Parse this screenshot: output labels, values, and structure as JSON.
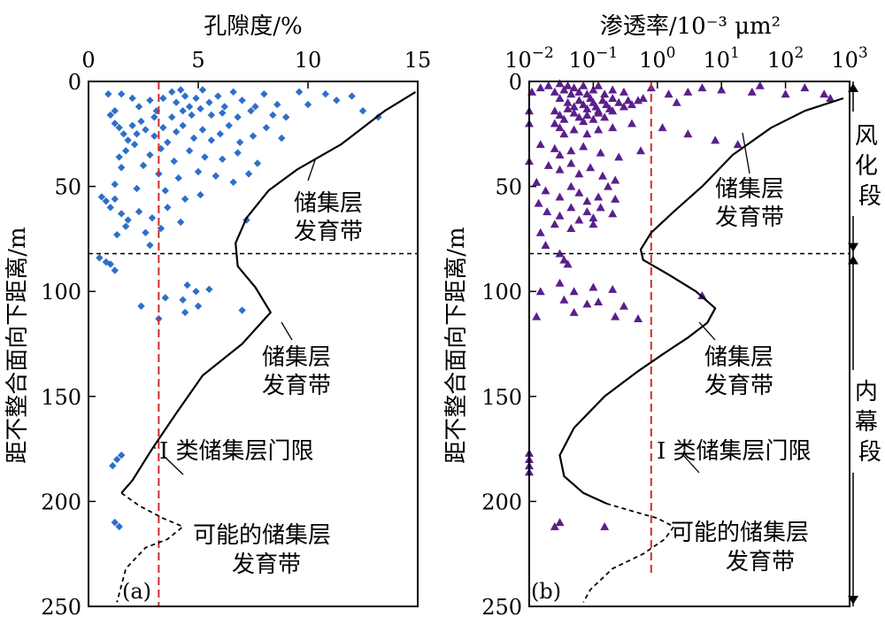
{
  "chart_data": [
    {
      "type": "scatter",
      "panel_label": "(a)",
      "xlabel": "孔隙度/%",
      "ylabel": "距不整合面向下距离/m",
      "xlim": [
        0,
        15
      ],
      "ylim": [
        250,
        0
      ],
      "x_ticks": [
        "0",
        "5",
        "10",
        "15"
      ],
      "y_ticks": [
        "0",
        "50",
        "100",
        "150",
        "200",
        "250"
      ],
      "marker": "diamond",
      "marker_color": "#2e6fc9",
      "threshold": {
        "x": 3.2,
        "color": "#d42a2a",
        "label": "I 类储集层门限"
      },
      "boundary_depth": 82,
      "annotations": [
        "储集层\n发育带",
        "储集层\n发育带",
        "可能的储集层\n发育带"
      ],
      "curve_solid": [
        [
          14.9,
          5
        ],
        [
          13.5,
          14
        ],
        [
          11.5,
          30
        ],
        [
          9.5,
          42
        ],
        [
          8.2,
          52
        ],
        [
          7.2,
          65
        ],
        [
          6.7,
          77
        ],
        [
          6.8,
          88
        ],
        [
          7.6,
          98
        ],
        [
          8.3,
          110
        ],
        [
          7.0,
          125
        ],
        [
          5.2,
          140
        ],
        [
          4.0,
          158
        ],
        [
          2.9,
          175
        ],
        [
          2.0,
          190
        ],
        [
          1.5,
          196
        ]
      ],
      "curve_dashed": [
        [
          1.5,
          196
        ],
        [
          2.3,
          202
        ],
        [
          3.4,
          208
        ],
        [
          4.3,
          212
        ],
        [
          3.6,
          218
        ],
        [
          2.6,
          222
        ],
        [
          1.7,
          232
        ],
        [
          1.3,
          248
        ]
      ],
      "points": [
        [
          0.9,
          6
        ],
        [
          1.2,
          14
        ],
        [
          1.5,
          6
        ],
        [
          2.0,
          8
        ],
        [
          2.3,
          12
        ],
        [
          2.8,
          9
        ],
        [
          3.1,
          14
        ],
        [
          3.4,
          8
        ],
        [
          3.8,
          5
        ],
        [
          4.0,
          10
        ],
        [
          4.2,
          4
        ],
        [
          4.4,
          7
        ],
        [
          4.6,
          12
        ],
        [
          4.9,
          8
        ],
        [
          5.2,
          4
        ],
        [
          5.5,
          10
        ],
        [
          5.9,
          7
        ],
        [
          6.2,
          12
        ],
        [
          6.6,
          5
        ],
        [
          7.0,
          9
        ],
        [
          7.4,
          14
        ],
        [
          8.0,
          6
        ],
        [
          8.6,
          11
        ],
        [
          9.0,
          17
        ],
        [
          9.6,
          5
        ],
        [
          10.0,
          11
        ],
        [
          10.8,
          6
        ],
        [
          11.3,
          9
        ],
        [
          12.0,
          7
        ],
        [
          12.5,
          14
        ],
        [
          13.2,
          17
        ],
        [
          4.3,
          14
        ],
        [
          4.7,
          16
        ],
        [
          5.1,
          13
        ],
        [
          5.6,
          16
        ],
        [
          6.1,
          15
        ],
        [
          6.8,
          17
        ],
        [
          7.6,
          12
        ],
        [
          8.4,
          16
        ],
        [
          3.8,
          17
        ],
        [
          3.0,
          17
        ],
        [
          1.0,
          16
        ],
        [
          1.2,
          20
        ],
        [
          1.4,
          22
        ],
        [
          1.6,
          25
        ],
        [
          1.8,
          28
        ],
        [
          2.0,
          21
        ],
        [
          2.2,
          25
        ],
        [
          2.4,
          19
        ],
        [
          2.6,
          23
        ],
        [
          3.0,
          26
        ],
        [
          3.4,
          22
        ],
        [
          3.6,
          29
        ],
        [
          4.0,
          24
        ],
        [
          4.3,
          21
        ],
        [
          4.8,
          27
        ],
        [
          5.2,
          23
        ],
        [
          5.6,
          28
        ],
        [
          6.0,
          25
        ],
        [
          6.4,
          21
        ],
        [
          6.9,
          29
        ],
        [
          7.5,
          26
        ],
        [
          8.1,
          22
        ],
        [
          8.8,
          27
        ],
        [
          2.1,
          30
        ],
        [
          1.7,
          33
        ],
        [
          1.4,
          36
        ],
        [
          2.8,
          35
        ],
        [
          3.3,
          32
        ],
        [
          3.9,
          38
        ],
        [
          4.6,
          33
        ],
        [
          5.3,
          36
        ],
        [
          6.1,
          37
        ],
        [
          6.8,
          34
        ],
        [
          7.7,
          39
        ],
        [
          1.5,
          41
        ],
        [
          2.5,
          40
        ],
        [
          3.2,
          44
        ],
        [
          4.1,
          46
        ],
        [
          5.0,
          43
        ],
        [
          5.8,
          45
        ],
        [
          6.6,
          48
        ],
        [
          7.3,
          44
        ],
        [
          1.2,
          49
        ],
        [
          2.2,
          51
        ],
        [
          3.5,
          52
        ],
        [
          4.4,
          56
        ],
        [
          5.1,
          54
        ],
        [
          0.6,
          55
        ],
        [
          0.8,
          57
        ],
        [
          1.0,
          60
        ],
        [
          1.2,
          56
        ],
        [
          1.5,
          63
        ],
        [
          1.8,
          66
        ],
        [
          2.3,
          62
        ],
        [
          2.9,
          65
        ],
        [
          3.6,
          60
        ],
        [
          4.2,
          67
        ],
        [
          3.3,
          70
        ],
        [
          2.6,
          72
        ],
        [
          1.7,
          69
        ],
        [
          1.3,
          73
        ],
        [
          7.2,
          66
        ],
        [
          2.8,
          78
        ],
        [
          0.5,
          84
        ],
        [
          0.8,
          86
        ],
        [
          1.0,
          87
        ],
        [
          1.2,
          90
        ],
        [
          4.5,
          97
        ],
        [
          4.9,
          100
        ],
        [
          5.5,
          99
        ],
        [
          3.5,
          103
        ],
        [
          4.3,
          104
        ],
        [
          5.0,
          107
        ],
        [
          4.4,
          110
        ],
        [
          7.0,
          109
        ],
        [
          2.4,
          107
        ],
        [
          3.2,
          113
        ],
        [
          1.5,
          178
        ],
        [
          1.3,
          180
        ],
        [
          1.1,
          183
        ],
        [
          1.2,
          210
        ],
        [
          1.4,
          212
        ]
      ]
    },
    {
      "type": "scatter",
      "panel_label": "(b)",
      "xlabel": "渗透率/10⁻³ μm²",
      "ylabel": "距不整合面向下距离/m",
      "x_scale": "log",
      "xlim": [
        0.01,
        1000
      ],
      "ylim": [
        250,
        0
      ],
      "x_ticks": [
        {
          "base": "10",
          "exp": "−2"
        },
        {
          "base": "10",
          "exp": "−1"
        },
        {
          "base": "10",
          "exp": "0"
        },
        {
          "base": "10",
          "exp": "1"
        },
        {
          "base": "10",
          "exp": "2"
        },
        {
          "base": "10",
          "exp": "3"
        }
      ],
      "y_ticks": [
        "0",
        "50",
        "100",
        "150",
        "200",
        "250"
      ],
      "marker": "triangle",
      "marker_color": "#5a1f8c",
      "threshold": {
        "x": 0.8,
        "color": "#d42a2a",
        "label": "I 类储集层门限"
      },
      "boundary_depth": 82,
      "annotations": [
        "储集层\n发育带",
        "储集层\n发育带",
        "可能的储集层\n发育带"
      ],
      "range_labels": [
        "风化段",
        "内幕段"
      ],
      "curve_solid": [
        [
          800,
          8
        ],
        [
          200,
          14
        ],
        [
          60,
          22
        ],
        [
          15,
          35
        ],
        [
          5,
          50
        ],
        [
          1.8,
          62
        ],
        [
          0.8,
          72
        ],
        [
          0.55,
          80
        ],
        [
          0.6,
          85
        ],
        [
          1.5,
          92
        ],
        [
          4,
          100
        ],
        [
          8,
          108
        ],
        [
          6,
          115
        ],
        [
          3,
          122
        ],
        [
          1.2,
          130
        ],
        [
          0.5,
          138
        ],
        [
          0.15,
          150
        ],
        [
          0.05,
          165
        ],
        [
          0.03,
          178
        ],
        [
          0.035,
          188
        ],
        [
          0.07,
          196
        ],
        [
          0.16,
          201
        ]
      ],
      "curve_dashed": [
        [
          0.16,
          201
        ],
        [
          0.45,
          205
        ],
        [
          1.0,
          208
        ],
        [
          1.8,
          212
        ],
        [
          1.3,
          218
        ],
        [
          0.6,
          225
        ],
        [
          0.2,
          232
        ],
        [
          0.09,
          242
        ],
        [
          0.07,
          248
        ]
      ],
      "points": [
        [
          0.011,
          5
        ],
        [
          0.015,
          3
        ],
        [
          0.02,
          2
        ],
        [
          0.025,
          5
        ],
        [
          0.03,
          1
        ],
        [
          0.035,
          4
        ],
        [
          0.04,
          2
        ],
        [
          0.045,
          6
        ],
        [
          0.05,
          3
        ],
        [
          0.06,
          5
        ],
        [
          0.07,
          2
        ],
        [
          0.08,
          6
        ],
        [
          0.1,
          4
        ],
        [
          0.12,
          2
        ],
        [
          0.15,
          6
        ],
        [
          0.2,
          4
        ],
        [
          0.3,
          5
        ],
        [
          0.8,
          3
        ],
        [
          1.5,
          6
        ],
        [
          3,
          5
        ],
        [
          5,
          3
        ],
        [
          10,
          4
        ],
        [
          30,
          5
        ],
        [
          40,
          2
        ],
        [
          100,
          6
        ],
        [
          200,
          3
        ],
        [
          400,
          6
        ],
        [
          500,
          8
        ],
        [
          0.03,
          8
        ],
        [
          0.04,
          10
        ],
        [
          0.05,
          12
        ],
        [
          0.06,
          9
        ],
        [
          0.07,
          11
        ],
        [
          0.08,
          13
        ],
        [
          0.09,
          8
        ],
        [
          0.1,
          10
        ],
        [
          0.11,
          12
        ],
        [
          0.12,
          14
        ],
        [
          0.14,
          9
        ],
        [
          0.16,
          11
        ],
        [
          0.18,
          13
        ],
        [
          0.2,
          8
        ],
        [
          0.25,
          10
        ],
        [
          0.3,
          12
        ],
        [
          0.35,
          9
        ],
        [
          0.4,
          11
        ],
        [
          0.5,
          9
        ],
        [
          0.6,
          8
        ],
        [
          2,
          10
        ],
        [
          0.025,
          14
        ],
        [
          0.03,
          16
        ],
        [
          0.035,
          18
        ],
        [
          0.04,
          13
        ],
        [
          0.05,
          15
        ],
        [
          0.06,
          17
        ],
        [
          0.07,
          19
        ],
        [
          0.08,
          16
        ],
        [
          0.1,
          18
        ],
        [
          0.12,
          15
        ],
        [
          0.15,
          17
        ],
        [
          0.2,
          14
        ],
        [
          0.01,
          14
        ],
        [
          0.01,
          20
        ],
        [
          0.025,
          20
        ],
        [
          0.03,
          22
        ],
        [
          0.035,
          25
        ],
        [
          0.05,
          23
        ],
        [
          0.08,
          25
        ],
        [
          0.12,
          23
        ],
        [
          0.2,
          22
        ],
        [
          0.4,
          20
        ],
        [
          1.2,
          22
        ],
        [
          3,
          25
        ],
        [
          8,
          28
        ],
        [
          18,
          30
        ],
        [
          0.015,
          30
        ],
        [
          0.025,
          32
        ],
        [
          0.03,
          35
        ],
        [
          0.045,
          33
        ],
        [
          0.07,
          31
        ],
        [
          0.13,
          34
        ],
        [
          0.25,
          36
        ],
        [
          0.55,
          33
        ],
        [
          0.01,
          38
        ],
        [
          0.02,
          40
        ],
        [
          0.03,
          42
        ],
        [
          0.045,
          39
        ],
        [
          0.06,
          44
        ],
        [
          0.09,
          41
        ],
        [
          0.14,
          45
        ],
        [
          0.22,
          47
        ],
        [
          0.013,
          48
        ],
        [
          0.018,
          52
        ],
        [
          0.03,
          55
        ],
        [
          0.045,
          50
        ],
        [
          0.06,
          53
        ],
        [
          0.08,
          57
        ],
        [
          0.12,
          55
        ],
        [
          0.17,
          50
        ],
        [
          0.22,
          56
        ],
        [
          0.014,
          58
        ],
        [
          0.019,
          62
        ],
        [
          0.03,
          64
        ],
        [
          0.045,
          60
        ],
        [
          0.06,
          66
        ],
        [
          0.08,
          62
        ],
        [
          0.1,
          65
        ],
        [
          0.13,
          60
        ],
        [
          0.2,
          63
        ],
        [
          0.025,
          68
        ],
        [
          0.045,
          70
        ],
        [
          0.1,
          68
        ],
        [
          0.015,
          72
        ],
        [
          0.018,
          78
        ],
        [
          0.03,
          82
        ],
        [
          0.035,
          85
        ],
        [
          0.04,
          87
        ],
        [
          0.03,
          96
        ],
        [
          0.05,
          100
        ],
        [
          0.1,
          98
        ],
        [
          0.2,
          99
        ],
        [
          0.015,
          100
        ],
        [
          0.035,
          104
        ],
        [
          0.08,
          106
        ],
        [
          0.12,
          105
        ],
        [
          0.3,
          107
        ],
        [
          5,
          102
        ],
        [
          0.05,
          110
        ],
        [
          0.013,
          112
        ],
        [
          0.22,
          112
        ],
        [
          0.5,
          113
        ],
        [
          0.01,
          177
        ],
        [
          0.01,
          180
        ],
        [
          0.01,
          183
        ],
        [
          0.01,
          186
        ],
        [
          0.025,
          212
        ],
        [
          0.03,
          210
        ],
        [
          0.15,
          212
        ]
      ]
    }
  ]
}
